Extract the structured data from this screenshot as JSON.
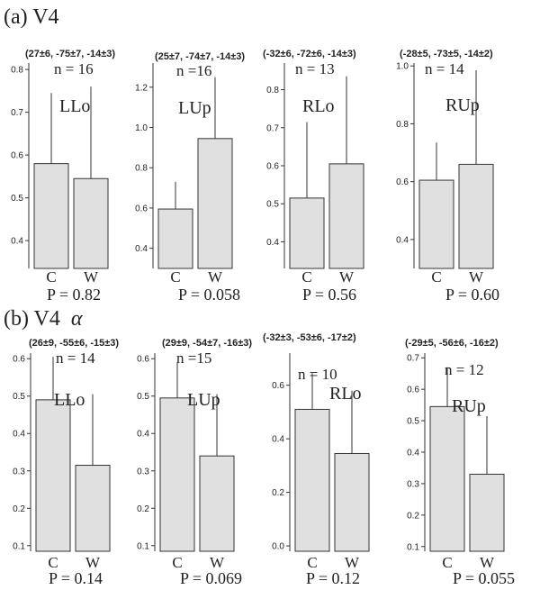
{
  "figure": {
    "sections": [
      {
        "label": "(a) V4"
      },
      {
        "label": "(b) V4",
        "label_greek": "α"
      }
    ]
  },
  "colors": {
    "bar": "#e0e0e0",
    "stroke": "#333333"
  },
  "chart_data": [
    {
      "type": "bar",
      "section": "(a) V4",
      "coords": "(27±6, -75±7, -14±3)",
      "n_label": "n = 16",
      "region": "LLo",
      "p_label": "P = 0.82",
      "categories": [
        "C",
        "W"
      ],
      "values": [
        0.58,
        0.545
      ],
      "errors": [
        0.165,
        0.215
      ],
      "ylim": [
        0.335,
        0.815
      ],
      "yticks": [
        0.4,
        0.5,
        0.6,
        0.7,
        0.8
      ],
      "tick_decimals": 1
    },
    {
      "type": "bar",
      "section": "(a) V4",
      "coords": "(25±7, -74±7, -14±3)",
      "n_label": "n =16",
      "region": "LUp",
      "p_label": "P = 0.058",
      "categories": [
        "C",
        "W"
      ],
      "values": [
        0.595,
        0.945
      ],
      "errors": [
        0.135,
        0.305
      ],
      "ylim": [
        0.3,
        1.32
      ],
      "yticks": [
        0.4,
        0.6,
        0.8,
        1.0,
        1.2
      ],
      "tick_decimals": 1
    },
    {
      "type": "bar",
      "section": "(a) V4",
      "coords": "(-32±6, -72±6, -14±3)",
      "n_label": "n = 13",
      "region": "RLo",
      "p_label": "P = 0.56",
      "categories": [
        "C",
        "W"
      ],
      "values": [
        0.515,
        0.605
      ],
      "errors": [
        0.2,
        0.23
      ],
      "ylim": [
        0.33,
        0.87
      ],
      "yticks": [
        0.4,
        0.5,
        0.6,
        0.7,
        0.8
      ],
      "tick_decimals": 1
    },
    {
      "type": "bar",
      "section": "(a) V4",
      "coords": "(-28±5, -73±5, -14±2)",
      "n_label": "n = 14",
      "region": "RUp",
      "p_label": "P = 0.60",
      "categories": [
        "C",
        "W"
      ],
      "values": [
        0.605,
        0.66
      ],
      "errors": [
        0.13,
        0.325
      ],
      "ylim": [
        0.3,
        1.01
      ],
      "yticks": [
        0.4,
        0.6,
        0.8,
        1.0
      ],
      "tick_decimals": 1
    },
    {
      "type": "bar",
      "section": "(b) V4 α",
      "coords": "(26±9, -55±6, -15±3)",
      "n_label": "n = 14",
      "region": "LLo",
      "p_label": "P = 0.14",
      "categories": [
        "C",
        "W"
      ],
      "values": [
        0.49,
        0.315
      ],
      "errors": [
        0.115,
        0.19
      ],
      "ylim": [
        0.085,
        0.615
      ],
      "yticks": [
        0.1,
        0.2,
        0.3,
        0.4,
        0.5,
        0.6
      ],
      "tick_decimals": 1
    },
    {
      "type": "bar",
      "section": "(b) V4 α",
      "coords": "(29±9, -54±7, -16±3)",
      "n_label": "n =15",
      "region": "LUp",
      "p_label": "P = 0.069",
      "categories": [
        "C",
        "W"
      ],
      "values": [
        0.495,
        0.34
      ],
      "errors": [
        0.095,
        0.165
      ],
      "ylim": [
        0.085,
        0.615
      ],
      "yticks": [
        0.1,
        0.2,
        0.3,
        0.4,
        0.5,
        0.6
      ],
      "tick_decimals": 1
    },
    {
      "type": "bar",
      "section": "(b) V4 α",
      "coords": "(-32±3, -53±6, -17±2)",
      "n_label": "n = 10",
      "region": "RLo",
      "p_label": "P = 0.12",
      "categories": [
        "C",
        "W"
      ],
      "values": [
        0.51,
        0.345
      ],
      "errors": [
        0.135,
        0.235
      ],
      "ylim": [
        -0.02,
        0.72
      ],
      "yticks": [
        0.0,
        0.2,
        0.4,
        0.6
      ],
      "tick_decimals": 1
    },
    {
      "type": "bar",
      "section": "(b) V4 α",
      "coords": "(-29±5, -56±6, -16±2)",
      "n_label": "n = 12",
      "region": "RUp",
      "p_label": "P = 0.055",
      "categories": [
        "C",
        "W"
      ],
      "values": [
        0.545,
        0.33
      ],
      "errors": [
        0.125,
        0.185
      ],
      "ylim": [
        0.085,
        0.715
      ],
      "yticks": [
        0.1,
        0.2,
        0.3,
        0.4,
        0.5,
        0.6,
        0.7
      ],
      "tick_decimals": 1
    }
  ]
}
